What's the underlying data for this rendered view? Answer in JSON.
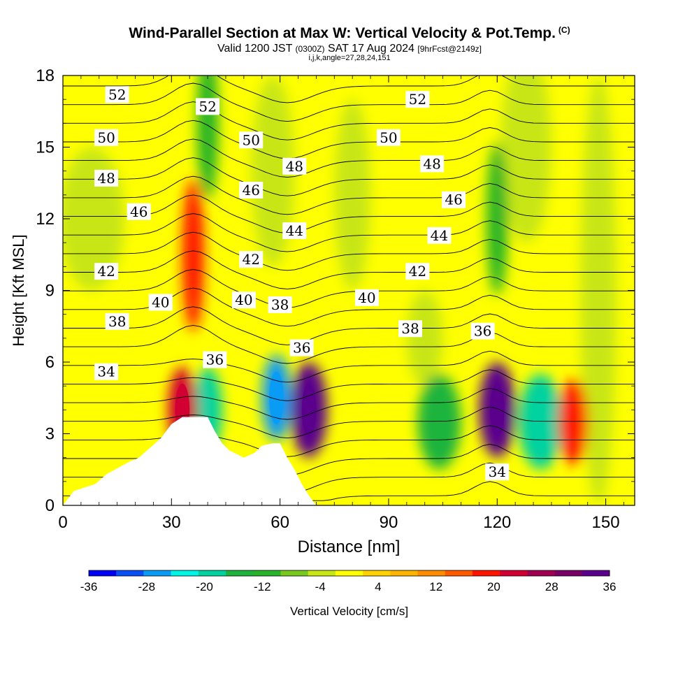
{
  "title": "Wind-Parallel Section at Max W: Vertical Velocity & Pot.Temp.",
  "title_suffix": "(C)",
  "subtitle_pre": "Valid 1200 JST",
  "subtitle_z": "(0300Z)",
  "subtitle_mid": "SAT 17 Aug 2024",
  "subtitle_fcst": "[9hrFcst@2149z]",
  "subtitle2": "i,j,k,angle=27,28,24,151",
  "chart_data": {
    "type": "heatmap",
    "xlabel": "Distance [nm]",
    "ylabel": "Height [Kft MSL]",
    "xlim": [
      0,
      158
    ],
    "ylim": [
      0,
      18
    ],
    "xticks": [
      0,
      30,
      60,
      90,
      120,
      150
    ],
    "yticks": [
      0,
      3,
      6,
      9,
      12,
      15,
      18
    ],
    "colorbar": {
      "label": "Vertical Velocity [cm/s]",
      "ticks": [
        -36,
        -28,
        -20,
        -12,
        -4,
        4,
        12,
        20,
        28,
        36
      ],
      "colors": [
        "#0000f5",
        "#0a4ff5",
        "#0a9bf5",
        "#00f5e6",
        "#00d2a0",
        "#1eb43c",
        "#28b428",
        "#78c81e",
        "#c8e614",
        "#ffff00",
        "#ffd200",
        "#ffb400",
        "#ff8c00",
        "#ff5a00",
        "#ff1400",
        "#d20032",
        "#a00050",
        "#780064",
        "#5a008c"
      ]
    },
    "w_features": [
      {
        "x": 36,
        "y": 10.5,
        "w": 18,
        "label": "updraft column"
      },
      {
        "x": 40,
        "y": 16,
        "w": -14,
        "label": "downdraft column"
      },
      {
        "x": 40,
        "y": 4,
        "w": -20,
        "label": "downdraft"
      },
      {
        "x": 59,
        "y": 4.5,
        "w": -28,
        "label": "downdraft"
      },
      {
        "x": 33,
        "y": 4,
        "w": 24,
        "label": "updraft"
      },
      {
        "x": 68,
        "y": 4,
        "w": 36,
        "label": "updraft max"
      },
      {
        "x": 104,
        "y": 3.5,
        "w": -16,
        "label": "downdraft"
      },
      {
        "x": 120,
        "y": 4,
        "w": 36,
        "label": "updraft max"
      },
      {
        "x": 132,
        "y": 3.5,
        "w": -22,
        "label": "downdraft"
      },
      {
        "x": 141,
        "y": 3.5,
        "w": 20,
        "label": "updraft"
      },
      {
        "x": 120,
        "y": 12,
        "w": -12,
        "label": "downdraft column"
      }
    ],
    "theta_labels": [
      {
        "v": 52,
        "x": 15,
        "y": 17.2
      },
      {
        "v": 52,
        "x": 40,
        "y": 16.7
      },
      {
        "v": 52,
        "x": 98,
        "y": 17.0
      },
      {
        "v": 50,
        "x": 12,
        "y": 15.4
      },
      {
        "v": 50,
        "x": 52,
        "y": 15.3
      },
      {
        "v": 50,
        "x": 90,
        "y": 15.4
      },
      {
        "v": 48,
        "x": 12,
        "y": 13.7
      },
      {
        "v": 48,
        "x": 64,
        "y": 14.2
      },
      {
        "v": 48,
        "x": 102,
        "y": 14.3
      },
      {
        "v": 46,
        "x": 21,
        "y": 12.3
      },
      {
        "v": 46,
        "x": 52,
        "y": 13.2
      },
      {
        "v": 46,
        "x": 108,
        "y": 12.8
      },
      {
        "v": 44,
        "x": 64,
        "y": 11.5
      },
      {
        "v": 44,
        "x": 104,
        "y": 11.3
      },
      {
        "v": 42,
        "x": 12,
        "y": 9.8
      },
      {
        "v": 42,
        "x": 52,
        "y": 10.3
      },
      {
        "v": 42,
        "x": 98,
        "y": 9.8
      },
      {
        "v": 40,
        "x": 27,
        "y": 8.5
      },
      {
        "v": 40,
        "x": 50,
        "y": 8.6
      },
      {
        "v": 40,
        "x": 84,
        "y": 8.7
      },
      {
        "v": 38,
        "x": 15,
        "y": 7.7
      },
      {
        "v": 38,
        "x": 60,
        "y": 8.4
      },
      {
        "v": 38,
        "x": 96,
        "y": 7.4
      },
      {
        "v": 36,
        "x": 42,
        "y": 6.1
      },
      {
        "v": 36,
        "x": 66,
        "y": 6.6
      },
      {
        "v": 36,
        "x": 116,
        "y": 7.3
      },
      {
        "v": 34,
        "x": 12,
        "y": 5.6
      },
      {
        "v": 34,
        "x": 120,
        "y": 1.4
      }
    ],
    "terrain": [
      [
        0,
        0
      ],
      [
        3,
        0.6
      ],
      [
        9,
        0.9
      ],
      [
        12,
        1.3
      ],
      [
        18,
        1.8
      ],
      [
        21,
        2.0
      ],
      [
        24,
        2.4
      ],
      [
        27,
        2.8
      ],
      [
        30,
        3.4
      ],
      [
        33,
        3.7
      ],
      [
        37,
        3.7
      ],
      [
        40,
        3.7
      ],
      [
        42,
        3.1
      ],
      [
        44,
        2.6
      ],
      [
        46,
        2.3
      ],
      [
        50,
        2.0
      ],
      [
        53,
        2.2
      ],
      [
        55,
        2.5
      ],
      [
        58,
        2.6
      ],
      [
        60,
        2.6
      ],
      [
        62,
        2.0
      ],
      [
        64,
        1.5
      ],
      [
        66,
        0.9
      ],
      [
        68,
        0.4
      ],
      [
        70,
        0
      ]
    ]
  }
}
